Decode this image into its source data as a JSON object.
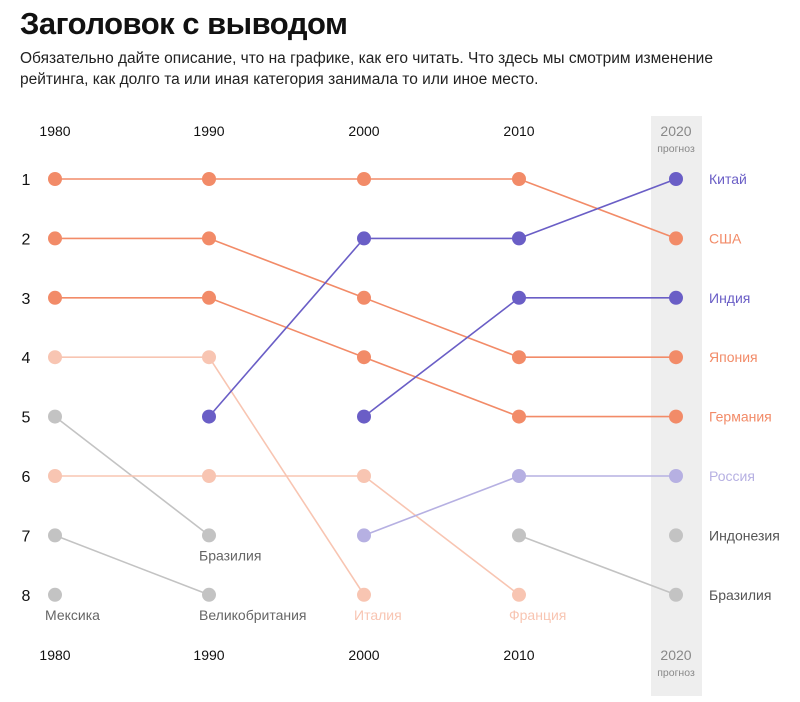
{
  "title": "Заголовок с выводом",
  "subtitle": "Обязательно дайте описание, что на графике, как его читать. Что здесь мы смотрим изменение рейтинга, как долго та или иная категория занимала то или иное место.",
  "chart_data": {
    "type": "bump",
    "categories": [
      "1980",
      "1990",
      "2000",
      "2010",
      "2020"
    ],
    "forecast_category": "2020",
    "forecast_label": "прогноз",
    "ranks": [
      1,
      2,
      3,
      4,
      5,
      6,
      7,
      8
    ],
    "colors": {
      "orange": "#f28b68",
      "light_orange": "#f8c5b2",
      "purple": "#6a5ec6",
      "light_purple": "#b6b0e2",
      "gray": "#c3c3c3",
      "forecast_band": "#eeeeee"
    },
    "series": [
      {
        "name": "США",
        "values": [
          1,
          1,
          1,
          1,
          2
        ],
        "color": "orange",
        "label_position": "right"
      },
      {
        "name": "Япония",
        "values": [
          2,
          2,
          3,
          4,
          4
        ],
        "color": "orange",
        "label_position": "right"
      },
      {
        "name": "Германия",
        "values": [
          3,
          3,
          4,
          5,
          5
        ],
        "color": "orange",
        "label_position": "right"
      },
      {
        "name": "Китай",
        "values": [
          null,
          5,
          2,
          2,
          1
        ],
        "color": "purple",
        "label_position": "right"
      },
      {
        "name": "Индия",
        "values": [
          null,
          null,
          5,
          3,
          3
        ],
        "color": "purple",
        "label_position": "right"
      },
      {
        "name": "Италия",
        "values": [
          4,
          4,
          8,
          null,
          null
        ],
        "color": "light_orange",
        "label_position": "below"
      },
      {
        "name": "Франция",
        "values": [
          6,
          6,
          6,
          8,
          null
        ],
        "color": "light_orange",
        "label_position": "below"
      },
      {
        "name": "Россия",
        "values": [
          null,
          null,
          7,
          6,
          6
        ],
        "color": "light_purple",
        "label_position": "right"
      },
      {
        "name": "Бразилия",
        "values": [
          5,
          7,
          null,
          null,
          null
        ],
        "color": "gray",
        "label_position": "below"
      },
      {
        "name": "Великобритания",
        "values": [
          7,
          8,
          null,
          null,
          null
        ],
        "color": "gray",
        "label_position": "below"
      },
      {
        "name": "Мексика",
        "values": [
          8,
          null,
          null,
          null,
          null
        ],
        "color": "gray",
        "label_position": "below"
      },
      {
        "name": "Бразилия",
        "values": [
          null,
          null,
          null,
          7,
          8
        ],
        "color": "gray",
        "label_position": "right"
      },
      {
        "name": "Индонезия",
        "values": [
          null,
          null,
          null,
          null,
          7
        ],
        "color": "gray",
        "label_position": "right"
      }
    ]
  }
}
